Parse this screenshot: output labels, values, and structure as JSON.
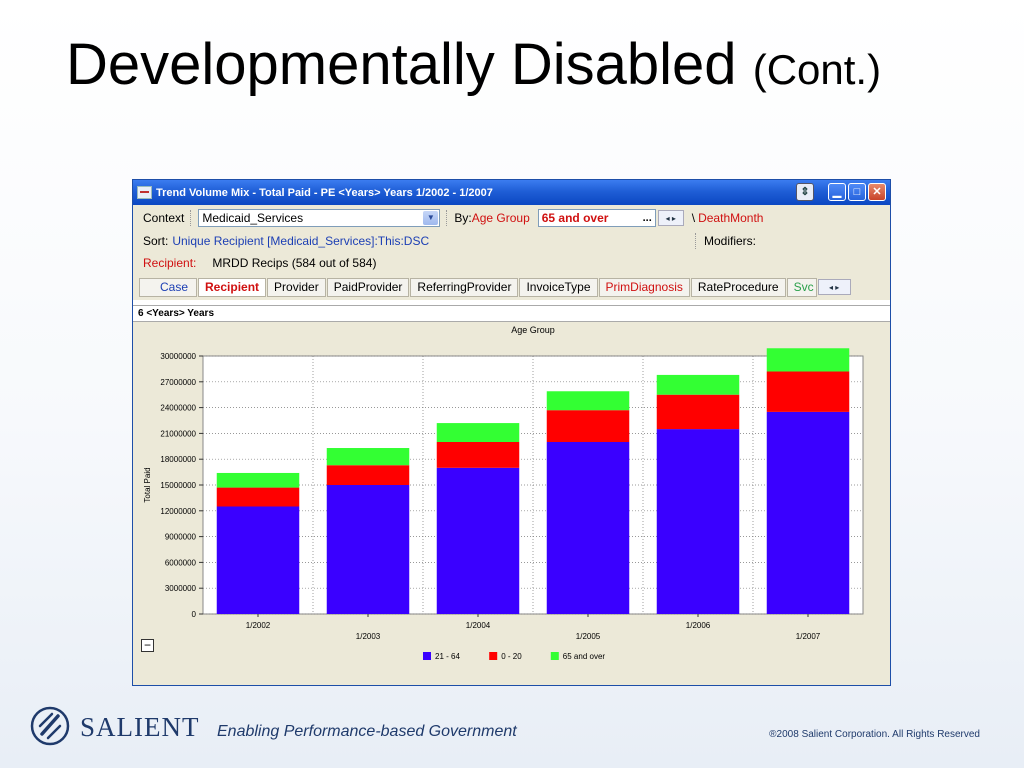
{
  "slide": {
    "title": "Developmentally Disabled",
    "title_suffix": "(Cont.)"
  },
  "window": {
    "title": "Trend Volume Mix - Total Paid - PE <Years> Years 1/2002 - 1/2007",
    "context_label": "Context",
    "context_value": "Medicaid_Services",
    "by_label": "By:",
    "by_value": "Age Group",
    "filter_value": "65 and over",
    "filter_more": "...",
    "death_sep": "\\",
    "death_month": "DeathMonth",
    "sort_label": "Sort:",
    "sort_value": "Unique Recipient [Medicaid_Services]:This:DSC",
    "modifiers_label": "Modifiers:",
    "recipient_label": "Recipient:",
    "recipient_value": "MRDD Recips (584 out of 584)",
    "tabs": [
      {
        "label": "Case",
        "color": "blue"
      },
      {
        "label": "Recipient",
        "color": "red",
        "selected": true
      },
      {
        "label": "Provider",
        "color": "black"
      },
      {
        "label": "PaidProvider",
        "color": "black"
      },
      {
        "label": "ReferringProvider",
        "color": "black"
      },
      {
        "label": "InvoiceType",
        "color": "black"
      },
      {
        "label": "PrimDiagnosis",
        "color": "red"
      },
      {
        "label": "RateProcedure",
        "color": "black"
      },
      {
        "label": "Svc",
        "color": "green"
      }
    ],
    "subheader": "6 <Years> Years",
    "collapse_glyph": "−"
  },
  "icons": {
    "app": "chart-app-icon",
    "dock": "dock-icon",
    "minimize": "minimize-icon",
    "maximize": "maximize-icon",
    "close": "close-icon"
  },
  "chart_data": {
    "type": "bar",
    "stacked": true,
    "title": "Age Group",
    "xlabel": "",
    "ylabel": "Total Paid",
    "categories": [
      "1/2002",
      "1/2003",
      "1/2004",
      "1/2005",
      "1/2006",
      "1/2007"
    ],
    "series": [
      {
        "name": "21 - 64",
        "color": "#3a00ff",
        "values": [
          12500000,
          15000000,
          17000000,
          20000000,
          21500000,
          23500000
        ]
      },
      {
        "name": "0 - 20",
        "color": "#ff0000",
        "values": [
          2200000,
          2300000,
          3000000,
          3700000,
          4000000,
          4700000
        ]
      },
      {
        "name": "65 and over",
        "color": "#33ff33",
        "values": [
          1700000,
          2000000,
          2200000,
          2200000,
          2300000,
          2700000
        ]
      }
    ],
    "ylim": [
      0,
      30000000
    ],
    "yticks": [
      0,
      3000000,
      6000000,
      9000000,
      12000000,
      15000000,
      18000000,
      21000000,
      24000000,
      27000000,
      30000000
    ],
    "grid": true,
    "legend": "bottom-center"
  },
  "footer": {
    "brand": "SALIENT",
    "tagline": "Enabling Performance-based Government",
    "copyright": "®2008 Salient Corporation. All Rights Reserved"
  }
}
